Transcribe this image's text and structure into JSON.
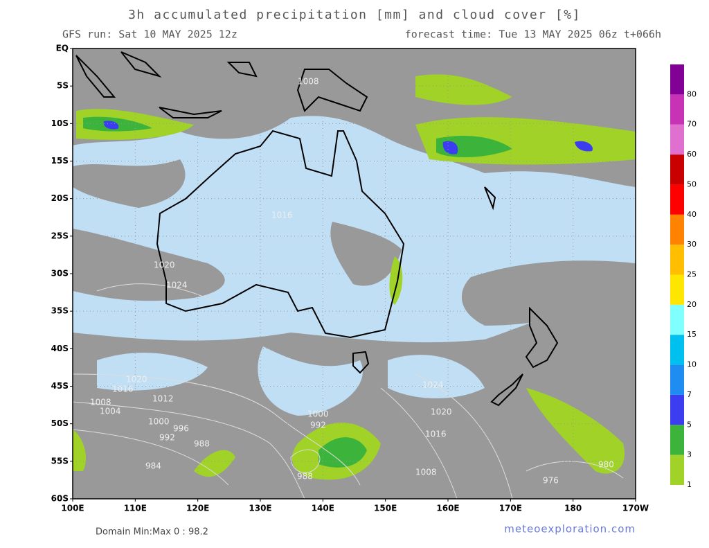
{
  "header": {
    "title": "3h accumulated precipitation [mm] and cloud cover [%]",
    "run": "GFS run: Sat 10 MAY 2025 12z",
    "forecast": "forecast time: Tue 13 MAY 2025 06z  t+066h"
  },
  "map": {
    "lat_labels": [
      "EQ",
      "5S",
      "10S",
      "15S",
      "20S",
      "25S",
      "30S",
      "35S",
      "40S",
      "45S",
      "50S",
      "55S",
      "60S"
    ],
    "lon_labels": [
      "100E",
      "110E",
      "120E",
      "130E",
      "140E",
      "150E",
      "160E",
      "170E",
      "180",
      "170W"
    ],
    "isobar_labels": [
      "1008",
      "1020",
      "1016",
      "1012",
      "1008",
      "1004",
      "1000",
      "996",
      "992",
      "988",
      "984",
      "1000",
      "992",
      "988",
      "1024",
      "1020",
      "1016",
      "1008",
      "980",
      "976",
      "1024",
      "1020",
      "1016"
    ]
  },
  "legend": {
    "levels": [
      1,
      3,
      5,
      7,
      10,
      15,
      20,
      25,
      30,
      40,
      50,
      60,
      70,
      80
    ],
    "colors": [
      "#a0d228",
      "#3cb43c",
      "#3c3cf0",
      "#1e8cf0",
      "#00c0f0",
      "#80ffff",
      "#ffe600",
      "#ffbe00",
      "#ff8200",
      "#ff0000",
      "#c80000",
      "#e070d0",
      "#c832b4",
      "#820096"
    ]
  },
  "footer": {
    "domain": "Domain Min:Max 0 : 98.2",
    "source": "meteoexploration.com"
  }
}
